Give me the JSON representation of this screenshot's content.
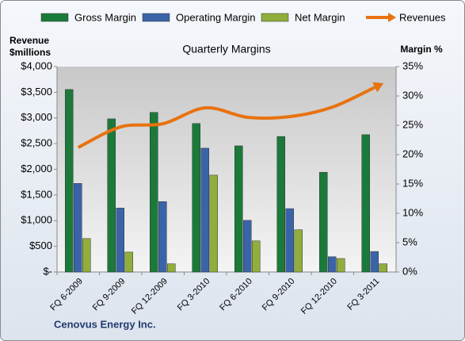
{
  "chart_data": {
    "type": "bar_line",
    "title": "Quarterly Margins",
    "ylabel": "Revenue $millions",
    "y2label": "Margin %",
    "source": "Cenovus Energy Inc.",
    "categories": [
      "FQ 6-2009",
      "FQ 9-2009",
      "FQ 12-2009",
      "FQ 3-2010",
      "FQ 6-2010",
      "FQ 9-2010",
      "FQ 12-2010",
      "FQ 3-2011"
    ],
    "series": [
      {
        "name": "Gross Margin",
        "color": "#1b7a3a",
        "axis": "y2",
        "values": [
          31.1,
          26.1,
          27.2,
          25.3,
          21.5,
          23.1,
          17.0,
          23.4
        ]
      },
      {
        "name": "Operating Margin",
        "color": "#3b64a8",
        "axis": "y2",
        "values": [
          15.1,
          10.9,
          12.0,
          21.1,
          8.8,
          10.8,
          2.6,
          3.5
        ]
      },
      {
        "name": "Net Margin",
        "color": "#8fae3c",
        "axis": "y2",
        "values": [
          5.7,
          3.4,
          1.4,
          16.5,
          5.3,
          7.2,
          2.3,
          1.4
        ]
      },
      {
        "name": "Revenues",
        "color": "#e8720f",
        "axis": "y",
        "line": true,
        "values": [
          2425,
          2826,
          2888,
          3197,
          3012,
          3027,
          3212,
          3598
        ]
      }
    ],
    "ylim": [
      0,
      4000
    ],
    "yticks": [
      {
        "value": 0,
        "label": "$-"
      },
      {
        "value": 500,
        "label": "$500"
      },
      {
        "value": 1000,
        "label": "$1,000"
      },
      {
        "value": 1500,
        "label": "$1,500"
      },
      {
        "value": 2000,
        "label": "$2,000"
      },
      {
        "value": 2500,
        "label": "$2,500"
      },
      {
        "value": 3000,
        "label": "$3,000"
      },
      {
        "value": 3500,
        "label": "$3,500"
      },
      {
        "value": 4000,
        "label": "$4,000"
      }
    ],
    "y2lim": [
      0,
      35
    ],
    "y2ticks": [
      {
        "value": 0,
        "label": "0%"
      },
      {
        "value": 5,
        "label": "5%"
      },
      {
        "value": 10,
        "label": "10%"
      },
      {
        "value": 15,
        "label": "15%"
      },
      {
        "value": 20,
        "label": "20%"
      },
      {
        "value": 25,
        "label": "25%"
      },
      {
        "value": 30,
        "label": "30%"
      },
      {
        "value": 35,
        "label": "35%"
      }
    ]
  }
}
